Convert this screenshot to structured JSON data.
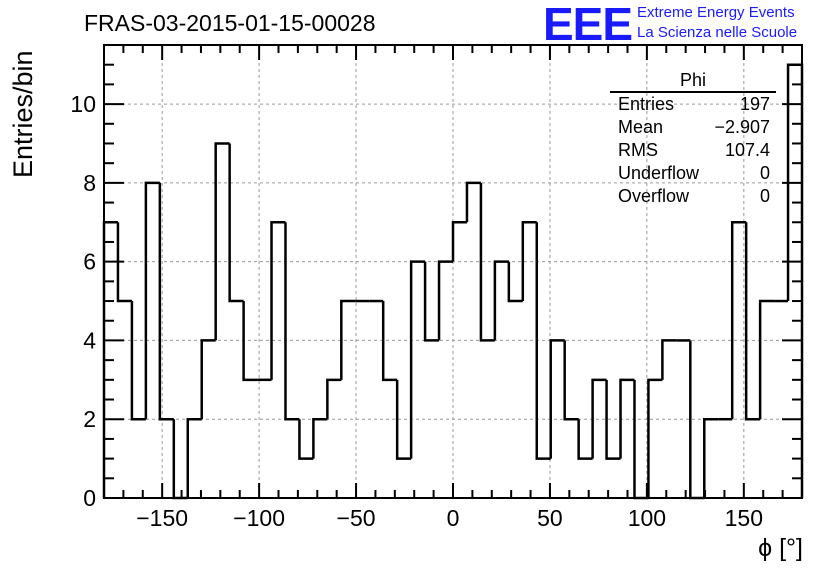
{
  "header": {
    "title": "FRAS-03-2015-01-15-00028",
    "logo_text": "EEE",
    "logo_line1": "Extreme Energy Events",
    "logo_line2": "La Scienza nelle Scuole"
  },
  "colors": {
    "accent": "#1a1aff",
    "line": "#000000",
    "grid": "#9a9a9a"
  },
  "stats_box": {
    "name": "Phi",
    "rows": [
      {
        "label": "Entries",
        "value": "197"
      },
      {
        "label": "Mean",
        "value": "−2.907"
      },
      {
        "label": "RMS",
        "value": "107.4"
      },
      {
        "label": "Underflow",
        "value": "0"
      },
      {
        "label": "Overflow",
        "value": "0"
      }
    ]
  },
  "chart_data": {
    "type": "histogram",
    "title": "FRAS-03-2015-01-15-00028",
    "xlabel": "ϕ [°]",
    "ylabel": "Entries/bin",
    "xlim": [
      -180,
      180
    ],
    "ylim": [
      0,
      11.5
    ],
    "grid": true,
    "bin_width": 7.2,
    "bin_edges_start": -180,
    "values": [
      7,
      5,
      2,
      8,
      2,
      0,
      2,
      4,
      9,
      5,
      3,
      3,
      7,
      2,
      1,
      2,
      3,
      5,
      5,
      5,
      3,
      1,
      6,
      4,
      6,
      7,
      8,
      4,
      6,
      5,
      7,
      1,
      4,
      2,
      1,
      3,
      1,
      3,
      0,
      3,
      4,
      4,
      0,
      2,
      2,
      7,
      2,
      5,
      5,
      11
    ],
    "x_ticks": [
      -150,
      -100,
      -50,
      0,
      50,
      100,
      150
    ],
    "x_tick_labels": [
      "−150",
      "−100",
      "−50",
      "0",
      "50",
      "100",
      "150"
    ],
    "y_ticks": [
      0,
      2,
      4,
      6,
      8,
      10
    ],
    "y_tick_labels": [
      "0",
      "2",
      "4",
      "6",
      "8",
      "10"
    ]
  }
}
